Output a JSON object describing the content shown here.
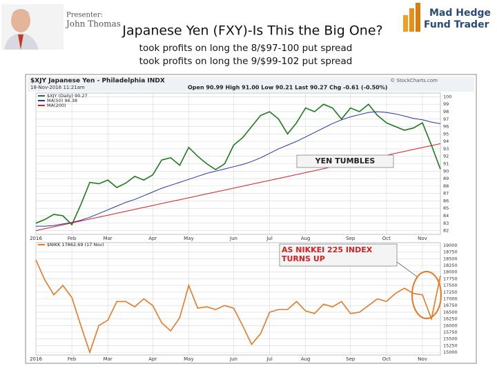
{
  "header": {
    "presenter_label": "Presenter:",
    "presenter_name": "John Thomas",
    "title": "Japanese Yen (FXY)-Is This the Big One?",
    "subtitles": [
      "took profits on long the 8/$97-100 put spread",
      "took profits on long the 9/$99-102 put spread"
    ],
    "logo": [
      "Mad Hedge",
      "Fund Trader"
    ]
  },
  "chart_data": [
    {
      "type": "line",
      "title": "$XJY Japanese Yen - Philadelphia INDX",
      "subtitle": "18-Nov-2016 11:21am",
      "quote": "Open 90.99 High 91.00 Low 90.21 Last 90.27 Chg -0.61 (-0.50%)",
      "source": "© StockCharts.com",
      "annotation": "YEN TUMBLES",
      "categories": [
        "2016",
        null,
        null,
        null,
        "Feb",
        null,
        null,
        null,
        "Mar",
        null,
        null,
        null,
        null,
        "Apr",
        null,
        null,
        null,
        "May",
        null,
        null,
        null,
        null,
        "Jun",
        null,
        null,
        null,
        "Jul",
        null,
        null,
        null,
        "Aug",
        null,
        null,
        null,
        null,
        "Sep",
        null,
        null,
        null,
        "Oct",
        null,
        null,
        null,
        "Nov",
        null,
        null
      ],
      "series": [
        {
          "name": "$XJY (Daily) 90.27",
          "color": "#1a7a1a",
          "values": [
            83.0,
            83.5,
            84.2,
            84.0,
            82.8,
            85.5,
            88.5,
            88.3,
            88.8,
            87.8,
            88.4,
            89.3,
            88.8,
            89.5,
            91.5,
            91.8,
            90.8,
            93.2,
            92.0,
            91.0,
            90.2,
            91.0,
            93.5,
            94.5,
            96.0,
            97.5,
            98.0,
            97.0,
            95.0,
            96.5,
            98.5,
            98.0,
            99.0,
            98.5,
            97.0,
            98.5,
            98.0,
            99.0,
            97.5,
            96.5,
            96.0,
            95.5,
            95.8,
            96.5,
            93.5,
            90.27
          ]
        },
        {
          "name": "MA(50) 96.38",
          "color": "#2233aa",
          "values": [
            82.6,
            82.6,
            82.7,
            82.9,
            83.1,
            83.4,
            83.8,
            84.3,
            84.8,
            85.3,
            85.8,
            86.2,
            86.7,
            87.2,
            87.7,
            88.1,
            88.5,
            88.9,
            89.3,
            89.7,
            90.0,
            90.3,
            90.6,
            90.9,
            91.3,
            91.8,
            92.4,
            93.0,
            93.5,
            94.0,
            94.6,
            95.2,
            95.8,
            96.4,
            96.9,
            97.3,
            97.6,
            97.9,
            98.0,
            97.9,
            97.7,
            97.4,
            97.1,
            96.9,
            96.6,
            96.38
          ]
        },
        {
          "name": "MA(200)",
          "color": "#d42020",
          "values": [
            82.0,
            82.26,
            82.52,
            82.78,
            83.04,
            83.3,
            83.56,
            83.82,
            84.08,
            84.34,
            84.6,
            84.86,
            85.12,
            85.38,
            85.64,
            85.9,
            86.16,
            86.42,
            86.68,
            86.94,
            87.2,
            87.46,
            87.72,
            87.98,
            88.24,
            88.5,
            88.76,
            89.02,
            89.28,
            89.54,
            89.8,
            90.06,
            90.32,
            90.58,
            90.84,
            91.1,
            91.36,
            91.62,
            91.88,
            92.14,
            92.4,
            92.66,
            92.92,
            93.18,
            93.44,
            93.7
          ]
        }
      ],
      "ylim": [
        81.5,
        100.5
      ],
      "yticks": [
        100,
        99,
        98,
        97,
        96,
        95,
        94,
        93,
        92,
        91,
        90,
        89,
        88,
        87,
        86,
        85,
        84,
        83,
        82
      ],
      "grid": true
    },
    {
      "type": "line",
      "annotation": "AS NIKKEI 225 INDEX TURNS UP",
      "categories": [
        "2016",
        null,
        null,
        null,
        "Feb",
        null,
        null,
        null,
        "Mar",
        null,
        null,
        null,
        null,
        "Apr",
        null,
        null,
        null,
        "May",
        null,
        null,
        null,
        null,
        "Jun",
        null,
        null,
        null,
        "Jul",
        null,
        null,
        null,
        "Aug",
        null,
        null,
        null,
        null,
        "Sep",
        null,
        null,
        null,
        "Oct",
        null,
        null,
        null,
        "Nov",
        null,
        null
      ],
      "series": [
        {
          "name": "$NIKK 17862.69 (17 Nov)",
          "color": "#e87722",
          "values": [
            18450,
            17700,
            17150,
            17500,
            17050,
            16000,
            15000,
            16000,
            16200,
            16900,
            16900,
            16700,
            17000,
            16750,
            16100,
            15800,
            16300,
            17500,
            16650,
            16700,
            16600,
            16750,
            16650,
            16000,
            15300,
            15700,
            16500,
            16600,
            16600,
            16900,
            16550,
            16450,
            16800,
            16700,
            16900,
            16450,
            16500,
            16750,
            17000,
            16900,
            17200,
            17400,
            17200,
            17150,
            16250,
            17862.69
          ]
        }
      ],
      "ylim": [
        14900,
        19100
      ],
      "yticks": [
        19000,
        18750,
        18500,
        18250,
        18000,
        17750,
        17500,
        17250,
        17000,
        16750,
        16500,
        16250,
        16000,
        15750,
        15500,
        15250,
        15000
      ],
      "grid": true
    }
  ]
}
